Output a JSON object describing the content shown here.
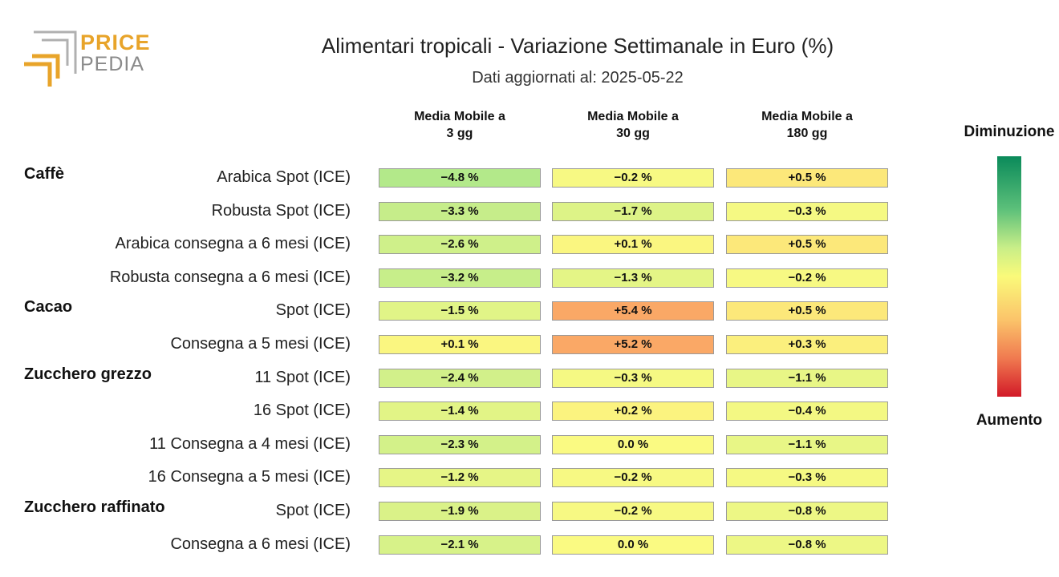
{
  "logo": {
    "line1": "PRICE",
    "line2": "PEDIA"
  },
  "chart_data": {
    "type": "heatmap",
    "title": "Alimentari tropicali - Variazione Settimanale in Euro (%)",
    "subtitle": "Dati aggiornati al: 2025-05-22",
    "columns": [
      "Media Mobile a\n3 gg",
      "Media Mobile a\n30 gg",
      "Media Mobile a\n180 gg"
    ],
    "legend": {
      "top": "Diminuzione",
      "bottom": "Aumento"
    },
    "rows": [
      {
        "group": "Caffè",
        "label": "Arabica Spot (ICE)",
        "values": [
          -4.8,
          -0.2,
          0.5
        ],
        "text": [
          "−4.8 %",
          "−0.2 %",
          "+0.5 %"
        ]
      },
      {
        "group": "",
        "label": "Robusta Spot (ICE)",
        "values": [
          -3.3,
          -1.7,
          -0.3
        ],
        "text": [
          "−3.3 %",
          "−1.7 %",
          "−0.3 %"
        ]
      },
      {
        "group": "",
        "label": "Arabica consegna a 6 mesi (ICE)",
        "values": [
          -2.6,
          0.1,
          0.5
        ],
        "text": [
          "−2.6 %",
          "+0.1 %",
          "+0.5 %"
        ]
      },
      {
        "group": "",
        "label": "Robusta consegna a 6 mesi (ICE)",
        "values": [
          -3.2,
          -1.3,
          -0.2
        ],
        "text": [
          "−3.2 %",
          "−1.3 %",
          "−0.2 %"
        ]
      },
      {
        "group": "Cacao",
        "label": "Spot (ICE)",
        "values": [
          -1.5,
          5.4,
          0.5
        ],
        "text": [
          "−1.5 %",
          "+5.4 %",
          "+0.5 %"
        ]
      },
      {
        "group": "",
        "label": "Consegna a 5 mesi (ICE)",
        "values": [
          0.1,
          5.2,
          0.3
        ],
        "text": [
          "+0.1 %",
          "+5.2 %",
          "+0.3 %"
        ]
      },
      {
        "group": "Zucchero grezzo",
        "label": "11 Spot (ICE)",
        "values": [
          -2.4,
          -0.3,
          -1.1
        ],
        "text": [
          "−2.4 %",
          "−0.3 %",
          "−1.1 %"
        ]
      },
      {
        "group": "",
        "label": "16 Spot (ICE)",
        "values": [
          -1.4,
          0.2,
          -0.4
        ],
        "text": [
          "−1.4 %",
          "+0.2 %",
          "−0.4 %"
        ]
      },
      {
        "group": "",
        "label": "11 Consegna a 4 mesi (ICE)",
        "values": [
          -2.3,
          0.0,
          -1.1
        ],
        "text": [
          "−2.3 %",
          "0.0 %",
          "−1.1 %"
        ]
      },
      {
        "group": "",
        "label": "16 Consegna a 5 mesi (ICE)",
        "values": [
          -1.2,
          -0.2,
          -0.3
        ],
        "text": [
          "−1.2 %",
          "−0.2 %",
          "−0.3 %"
        ]
      },
      {
        "group": "Zucchero raffinato",
        "label": "Spot (ICE)",
        "values": [
          -1.9,
          -0.2,
          -0.8
        ],
        "text": [
          "−1.9 %",
          "−0.2 %",
          "−0.8 %"
        ]
      },
      {
        "group": "",
        "label": "Consegna a 6 mesi (ICE)",
        "values": [
          -2.1,
          0.0,
          -0.8
        ],
        "text": [
          "−2.1 %",
          "0.0 %",
          "−0.8 %"
        ]
      }
    ]
  }
}
